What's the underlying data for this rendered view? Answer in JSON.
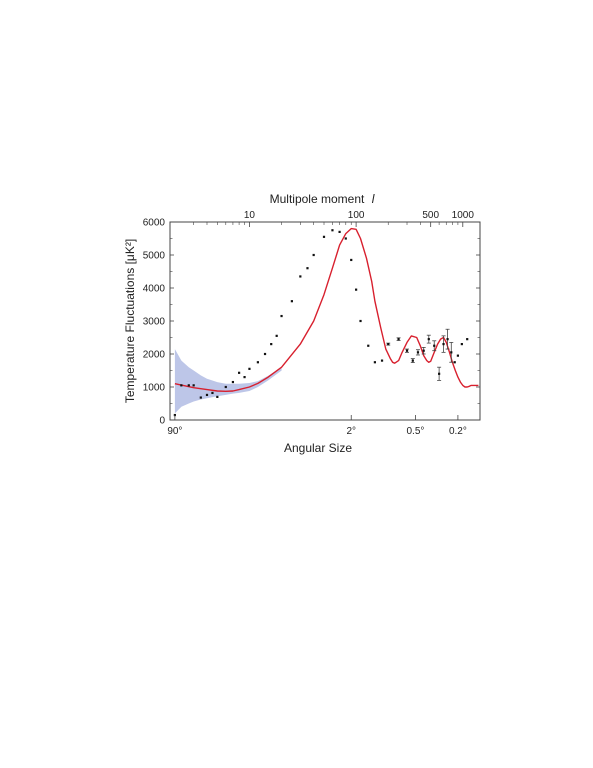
{
  "chart_data": {
    "type": "scatter",
    "title": "",
    "top_axis": {
      "label": "Multipole moment",
      "label_symbol": "l",
      "scale": "log",
      "tick_labels": [
        "10",
        "100",
        "500",
        "1000"
      ],
      "tick_values": [
        10,
        100,
        500,
        1000
      ],
      "minor_tick_values": [
        3,
        4,
        5,
        6,
        7,
        8,
        9,
        20,
        30,
        40,
        50,
        60,
        70,
        80,
        90,
        200,
        300,
        400,
        600,
        700,
        800,
        900
      ]
    },
    "xlabel": "Angular Size",
    "x_tick_labels": [
      "90°",
      "2°",
      "0.5°",
      "0.2°"
    ],
    "x_tick_multipoles": [
      2,
      90,
      360,
      900
    ],
    "xlim_multipole": [
      1.8,
      1450
    ],
    "ylabel": "Temperature Fluctuations [μK²]",
    "ylim": [
      0,
      6000
    ],
    "y_ticks": [
      0,
      1000,
      2000,
      3000,
      4000,
      5000,
      6000
    ],
    "grid": false,
    "series": [
      {
        "kind": "data_points_with_error_bars",
        "x_l": [
          2,
          2.3,
          2.7,
          3,
          3.5,
          4,
          4.5,
          5,
          6,
          7,
          8,
          9,
          10,
          12,
          14,
          16,
          18,
          20,
          25,
          30,
          35,
          40,
          50,
          60,
          70,
          80,
          90,
          100,
          110,
          130,
          150,
          175,
          200,
          250,
          300,
          340,
          380,
          430,
          480,
          540,
          600,
          660,
          720,
          780,
          840,
          900,
          980,
          1100
        ],
        "y": [
          150,
          1050,
          1050,
          1050,
          680,
          760,
          820,
          700,
          1000,
          1150,
          1430,
          1300,
          1550,
          1750,
          2000,
          2300,
          2550,
          3150,
          3600,
          4350,
          4600,
          5000,
          5550,
          5750,
          5700,
          5500,
          4850,
          3950,
          3000,
          2250,
          1750,
          1800,
          2300,
          2450,
          2100,
          1800,
          2050,
          2100,
          2450,
          2250,
          1400,
          2300,
          2450,
          2050,
          1750,
          1950,
          2300,
          2450
        ],
        "err": [
          0,
          0,
          0,
          0,
          0,
          0,
          0,
          0,
          0,
          0,
          0,
          0,
          0,
          0,
          0,
          0,
          0,
          0,
          0,
          0,
          0,
          0,
          0,
          0,
          0,
          0,
          0,
          0,
          0,
          0,
          0,
          0,
          30,
          40,
          50,
          60,
          80,
          100,
          120,
          150,
          200,
          250,
          300,
          300,
          0,
          0,
          0,
          0
        ]
      },
      {
        "kind": "model_curve",
        "color": "#d8202e",
        "x_l": [
          2,
          3,
          4,
          5,
          6,
          7,
          8,
          10,
          12,
          15,
          20,
          30,
          40,
          50,
          60,
          70,
          80,
          90,
          100,
          110,
          125,
          140,
          150,
          170,
          190,
          210,
          220,
          230,
          250,
          270,
          300,
          330,
          370,
          400,
          430,
          460,
          480,
          500,
          540,
          580,
          620,
          660,
          700,
          750,
          800,
          850,
          900,
          950,
          1000,
          1050,
          1100,
          1150,
          1200,
          1300,
          1400
        ],
        "y": [
          1100,
          980,
          920,
          880,
          870,
          880,
          920,
          1000,
          1110,
          1300,
          1600,
          2300,
          3000,
          3800,
          4600,
          5300,
          5650,
          5800,
          5780,
          5500,
          4900,
          4200,
          3600,
          2800,
          2150,
          1850,
          1750,
          1720,
          1800,
          2050,
          2350,
          2550,
          2500,
          2250,
          1950,
          1800,
          1750,
          1780,
          2050,
          2300,
          2450,
          2500,
          2350,
          2050,
          1750,
          1500,
          1300,
          1150,
          1050,
          1000,
          1000,
          1020,
          1050,
          1050,
          1050
        ]
      },
      {
        "kind": "cosmic_variance_band",
        "color": "#b6c0e6",
        "x_l": [
          2,
          2.3,
          2.7,
          3,
          3.5,
          4,
          5,
          6,
          7,
          8,
          10,
          12,
          15,
          20
        ],
        "upper": [
          2150,
          1800,
          1600,
          1500,
          1350,
          1250,
          1150,
          1100,
          1100,
          1100,
          1120,
          1180,
          1340,
          1600
        ],
        "lower": [
          200,
          400,
          500,
          560,
          620,
          660,
          720,
          760,
          800,
          820,
          880,
          1000,
          1200,
          1500
        ]
      }
    ]
  }
}
